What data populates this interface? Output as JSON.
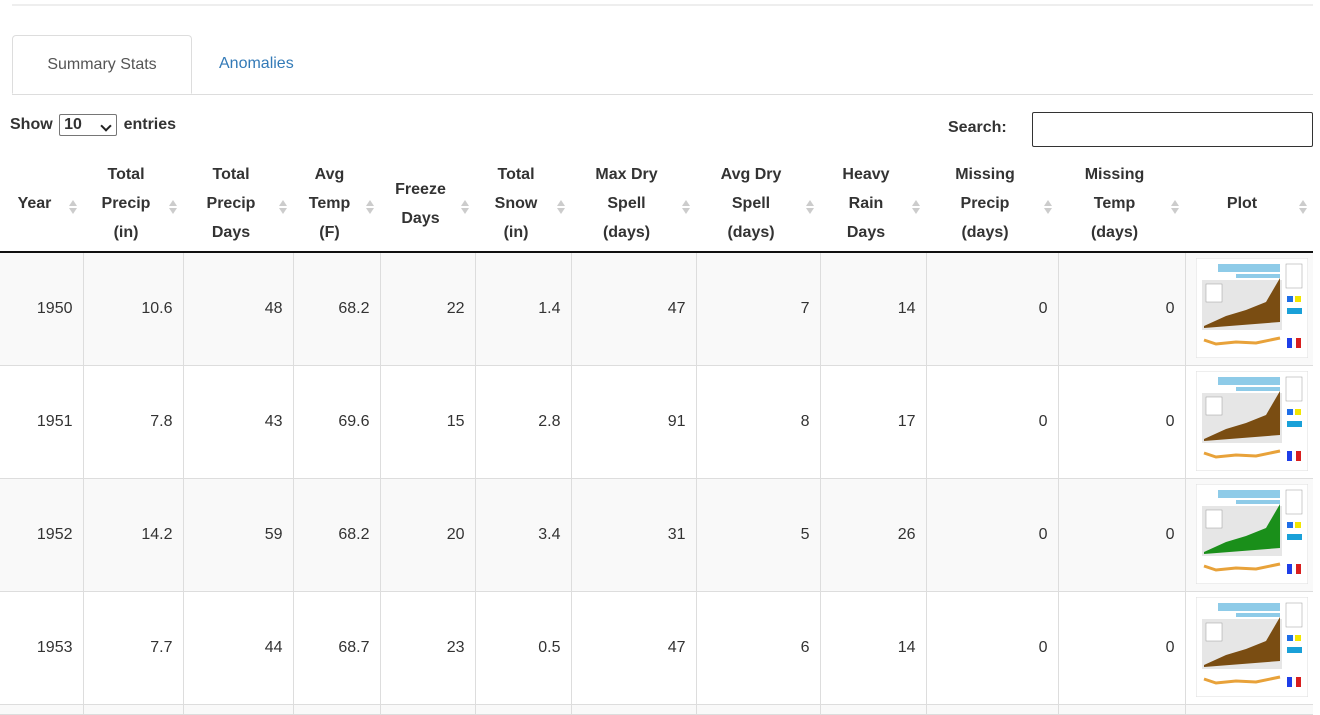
{
  "tabs": [
    "Summary Stats",
    "Anomalies"
  ],
  "length_control": {
    "before": "Show",
    "value": "10",
    "after": "entries"
  },
  "search_label": "Search:",
  "table": {
    "headers": [
      [
        "Year"
      ],
      [
        "Total",
        "Precip",
        "(in)"
      ],
      [
        "Total",
        "Precip",
        "Days"
      ],
      [
        "Avg",
        "Temp",
        "(F)"
      ],
      [
        "Freeze",
        "Days"
      ],
      [
        "Total",
        "Snow",
        "(in)"
      ],
      [
        "Max Dry",
        "Spell",
        "(days)"
      ],
      [
        "Avg Dry",
        "Spell",
        "(days)"
      ],
      [
        "Heavy",
        "Rain",
        "Days"
      ],
      [
        "Missing",
        "Precip",
        "(days)"
      ],
      [
        "Missing",
        "Temp",
        "(days)"
      ],
      [
        "Plot"
      ]
    ],
    "rows": [
      [
        1950,
        10.6,
        48,
        68.2,
        22,
        1.4,
        47,
        7,
        14,
        0,
        0
      ],
      [
        1951,
        7.8,
        43,
        69.6,
        15,
        2.8,
        91,
        8,
        17,
        0,
        0
      ],
      [
        1952,
        14.2,
        59,
        68.2,
        20,
        3.4,
        31,
        5,
        26,
        0,
        0
      ],
      [
        1953,
        7.7,
        44,
        68.7,
        23,
        0.5,
        47,
        6,
        14,
        0,
        0
      ]
    ]
  }
}
